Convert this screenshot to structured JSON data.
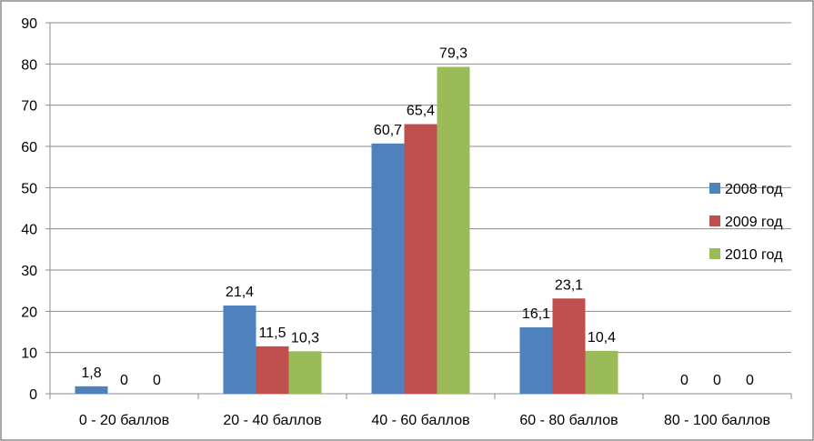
{
  "chart_data": {
    "type": "bar",
    "categories": [
      "0 - 20 баллов",
      "20 - 40 баллов",
      "40 - 60 баллов",
      "60 - 80 баллов",
      "80 - 100 баллов"
    ],
    "series": [
      {
        "name": "2008 год",
        "color": "#4f81bd",
        "values": [
          1.8,
          21.4,
          60.7,
          16.1,
          0
        ],
        "labels": [
          "1,8",
          "21,4",
          "60,7",
          "16,1",
          "0"
        ]
      },
      {
        "name": "2009 год",
        "color": "#c0504d",
        "values": [
          0,
          11.5,
          65.4,
          23.1,
          0
        ],
        "labels": [
          "0",
          "11,5",
          "65,4",
          "23,1",
          "0"
        ]
      },
      {
        "name": "2010 год",
        "color": "#9bbb59",
        "values": [
          0,
          10.3,
          79.3,
          10.4,
          0
        ],
        "labels": [
          "0",
          "10,3",
          "79,3",
          "10,4",
          "0"
        ]
      }
    ],
    "yticks": [
      0,
      10,
      20,
      30,
      40,
      50,
      60,
      70,
      80,
      90
    ],
    "ylim": [
      0,
      90
    ],
    "grid": true,
    "legend": "right",
    "title": "",
    "xlabel": "",
    "ylabel": ""
  }
}
